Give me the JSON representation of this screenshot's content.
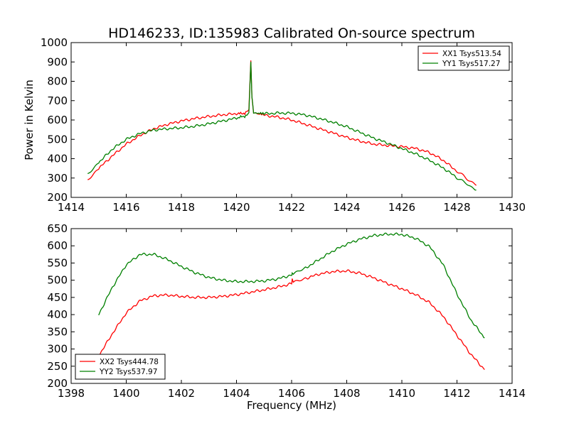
{
  "figure": {
    "title": "HD146233, ID:135983 Calibrated On-source spectrum"
  },
  "chart_data": [
    {
      "type": "line",
      "title": "HD146233, ID:135983 Calibrated On-source spectrum",
      "xlabel": "",
      "ylabel": "Power in Kelvin",
      "xlim": [
        1414,
        1430
      ],
      "ylim": [
        200,
        1000
      ],
      "xticks": [
        "1414",
        "1416",
        "1418",
        "1420",
        "1422",
        "1424",
        "1426",
        "1428",
        "1430"
      ],
      "yticks": [
        "200",
        "300",
        "400",
        "500",
        "600",
        "700",
        "800",
        "900",
        "1000"
      ],
      "grid": false,
      "legend": "top-right",
      "series": [
        {
          "name": "XX1 Tsys513.54",
          "color": "#ff0000",
          "x": [
            1414.6,
            1415.0,
            1415.5,
            1416.0,
            1416.5,
            1417.0,
            1417.5,
            1418.0,
            1418.5,
            1419.0,
            1419.5,
            1420.0,
            1420.3,
            1420.45,
            1420.52,
            1420.56,
            1420.62,
            1420.75,
            1421.0,
            1421.5,
            1422.0,
            1422.5,
            1423.0,
            1423.5,
            1424.0,
            1424.5,
            1425.0,
            1425.5,
            1426.0,
            1426.5,
            1427.0,
            1427.5,
            1428.0,
            1428.7
          ],
          "values": [
            292,
            350,
            415,
            475,
            520,
            555,
            578,
            595,
            608,
            618,
            627,
            632,
            635,
            650,
            905,
            720,
            640,
            632,
            625,
            615,
            600,
            578,
            555,
            533,
            510,
            490,
            475,
            468,
            462,
            453,
            432,
            392,
            335,
            262
          ]
        },
        {
          "name": "YY1 Tsys517.27",
          "color": "#008000",
          "x": [
            1414.6,
            1415.0,
            1415.5,
            1416.0,
            1416.5,
            1417.0,
            1417.5,
            1418.0,
            1418.5,
            1419.0,
            1419.5,
            1420.0,
            1420.3,
            1420.45,
            1420.52,
            1420.56,
            1420.62,
            1420.75,
            1421.0,
            1421.5,
            1422.0,
            1422.5,
            1423.0,
            1423.5,
            1424.0,
            1424.5,
            1425.0,
            1425.5,
            1426.0,
            1426.5,
            1427.0,
            1427.5,
            1428.0,
            1428.7
          ],
          "values": [
            320,
            380,
            450,
            500,
            530,
            548,
            555,
            560,
            568,
            580,
            595,
            610,
            620,
            632,
            900,
            720,
            640,
            632,
            632,
            636,
            635,
            626,
            608,
            588,
            565,
            535,
            505,
            480,
            452,
            425,
            392,
            352,
            302,
            238
          ]
        }
      ]
    },
    {
      "type": "line",
      "title": "",
      "xlabel": "Frequency (MHz)",
      "ylabel": "",
      "xlim": [
        1398,
        1414
      ],
      "ylim": [
        200,
        650
      ],
      "xticks": [
        "1398",
        "1400",
        "1402",
        "1404",
        "1406",
        "1408",
        "1410",
        "1412",
        "1414"
      ],
      "yticks": [
        "200",
        "250",
        "300",
        "350",
        "400",
        "450",
        "500",
        "550",
        "600",
        "650"
      ],
      "grid": false,
      "legend": "bottom-left",
      "series": [
        {
          "name": "XX2 Tsys444.78",
          "color": "#ff0000",
          "x": [
            1399.0,
            1399.5,
            1400.0,
            1400.5,
            1401.0,
            1401.5,
            1402.0,
            1402.5,
            1403.0,
            1403.5,
            1404.0,
            1404.5,
            1405.0,
            1405.5,
            1406.0,
            1406.02,
            1406.06,
            1406.5,
            1407.0,
            1407.5,
            1408.0,
            1408.5,
            1409.0,
            1409.5,
            1410.0,
            1410.5,
            1411.0,
            1411.5,
            1412.0,
            1412.5,
            1413.0
          ],
          "values": [
            280,
            345,
            405,
            440,
            455,
            457,
            453,
            450,
            450,
            453,
            458,
            465,
            472,
            480,
            490,
            505,
            493,
            505,
            518,
            525,
            527,
            520,
            506,
            490,
            475,
            458,
            435,
            395,
            340,
            285,
            240
          ]
        },
        {
          "name": "YY2 Tsys537.97",
          "color": "#008000",
          "x": [
            1399.0,
            1399.5,
            1400.0,
            1400.5,
            1401.0,
            1401.5,
            1402.0,
            1402.5,
            1403.0,
            1403.5,
            1404.0,
            1404.5,
            1405.0,
            1405.5,
            1406.0,
            1406.02,
            1406.06,
            1406.5,
            1407.0,
            1407.5,
            1408.0,
            1408.5,
            1409.0,
            1409.5,
            1410.0,
            1410.5,
            1411.0,
            1411.5,
            1412.0,
            1412.5,
            1413.0
          ],
          "values": [
            400,
            480,
            545,
            575,
            575,
            560,
            540,
            522,
            508,
            500,
            496,
            496,
            498,
            504,
            515,
            522,
            517,
            535,
            560,
            585,
            605,
            620,
            630,
            634,
            633,
            622,
            598,
            545,
            460,
            385,
            332
          ]
        }
      ]
    }
  ]
}
